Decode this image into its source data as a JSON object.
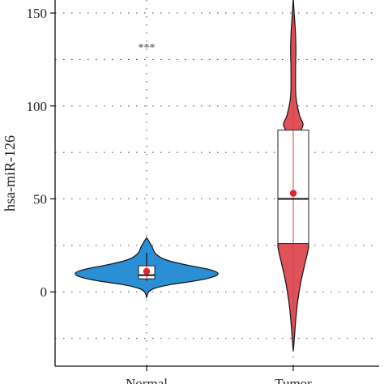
{
  "chart_data": {
    "type": "violin",
    "ylabel": "hsa-miR-126",
    "xlabel": "",
    "ylim": [
      -40,
      157
    ],
    "yticks": [
      0,
      50,
      100,
      150
    ],
    "grid": true,
    "annotation": "***",
    "categories": [
      "Normal",
      "Tumor"
    ],
    "groups": [
      {
        "label": "Normal",
        "color": "#2a8fd4",
        "min": -3,
        "max": 29,
        "q1": 7,
        "median": 9,
        "q3": 14,
        "whisker_low": 6,
        "whisker_high": 21,
        "mean": 11,
        "density": [
          [
            -3,
            0.0
          ],
          [
            0,
            0.03
          ],
          [
            2,
            0.12
          ],
          [
            4,
            0.35
          ],
          [
            6,
            0.7
          ],
          [
            8,
            0.93
          ],
          [
            10,
            1.0
          ],
          [
            12,
            0.88
          ],
          [
            14,
            0.62
          ],
          [
            16,
            0.38
          ],
          [
            18,
            0.22
          ],
          [
            20,
            0.14
          ],
          [
            22,
            0.1
          ],
          [
            24,
            0.08
          ],
          [
            26,
            0.05
          ],
          [
            28,
            0.02
          ],
          [
            29,
            0.0
          ]
        ]
      },
      {
        "label": "Tumor",
        "color": "#e0525a",
        "min": -32,
        "max": 158,
        "q1": 26,
        "median": 50,
        "q3": 87,
        "whisker_low": -20,
        "whisker_high": 150,
        "mean": 53,
        "density": [
          [
            -32,
            0.0
          ],
          [
            -25,
            0.06
          ],
          [
            -15,
            0.14
          ],
          [
            -5,
            0.25
          ],
          [
            5,
            0.42
          ],
          [
            15,
            0.65
          ],
          [
            22,
            0.82
          ],
          [
            26,
            0.85
          ],
          [
            30,
            0.55
          ],
          [
            38,
            0.3
          ],
          [
            50,
            0.22
          ],
          [
            62,
            0.2
          ],
          [
            75,
            0.25
          ],
          [
            85,
            0.35
          ],
          [
            90,
            0.55
          ],
          [
            95,
            0.35
          ],
          [
            105,
            0.15
          ],
          [
            120,
            0.13
          ],
          [
            130,
            0.15
          ],
          [
            140,
            0.12
          ],
          [
            150,
            0.05
          ],
          [
            158,
            0.0
          ]
        ]
      }
    ]
  }
}
